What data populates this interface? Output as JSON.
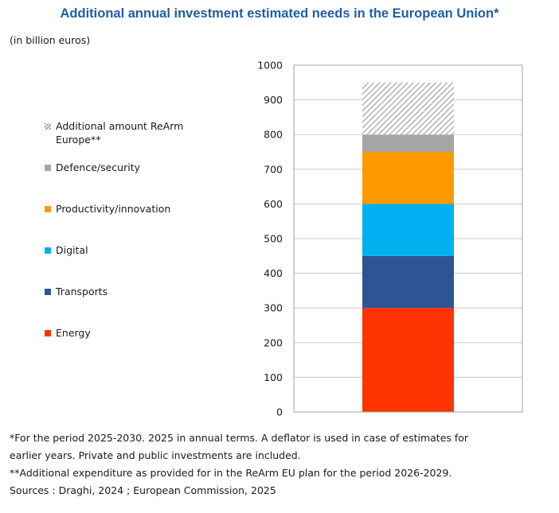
{
  "header": {
    "title": "Additional annual investment estimated needs in the European Union*",
    "subtitle": "(in billion euros)"
  },
  "chart_data": {
    "type": "bar",
    "stacked": true,
    "categories": [
      ""
    ],
    "ylim": [
      0,
      1000
    ],
    "ytick_step": 100,
    "ytick_labels": [
      "0",
      "100",
      "200",
      "300",
      "400",
      "500",
      "600",
      "700",
      "800",
      "900",
      "1000"
    ],
    "grid": true,
    "legend_position": "left",
    "series": [
      {
        "name": "Energy",
        "values": [
          300
        ],
        "color": "#ff3300"
      },
      {
        "name": "Transports",
        "values": [
          150
        ],
        "color": "#2e5496"
      },
      {
        "name": "Digital",
        "values": [
          150
        ],
        "color": "#00b0f0"
      },
      {
        "name": "Productivity/innovation",
        "values": [
          150
        ],
        "color": "#ff9900"
      },
      {
        "name": "Defence/security",
        "values": [
          50
        ],
        "color": "#a6a6a6"
      },
      {
        "name": "Additional amount ReArm Europe**",
        "values": [
          150
        ],
        "color": "#a6a6a6",
        "pattern": "hatch"
      }
    ]
  },
  "notes": {
    "line1": "*For the period 2025-2030. 2025 in annual terms. A deflator is used in case of estimates for",
    "line2": "earlier years. Private and public investments are included.",
    "line3": "**Additional expenditure as provided for in the ReArm EU plan for the period 2026-2029.",
    "line4": "Sources : Draghi, 2024 ; European Commission, 2025"
  }
}
